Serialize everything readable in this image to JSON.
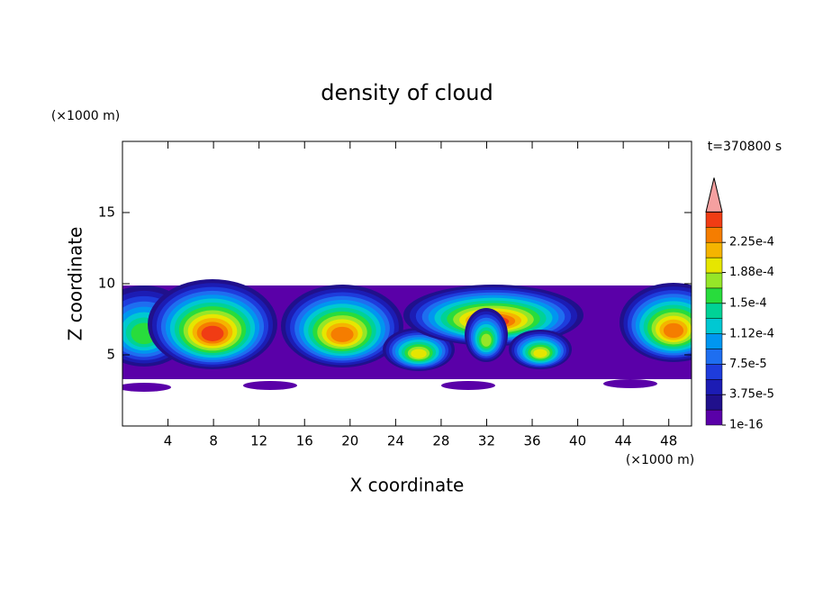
{
  "chart_data": {
    "type": "contour",
    "title": "density of cloud",
    "x_label": "X coordinate",
    "y_label": "Z coordinate",
    "x_unit": "(×1000 m)",
    "y_unit": "(×1000 m)",
    "time_label": "t=370800 s",
    "xlim": [
      0,
      50
    ],
    "xticks": [
      4,
      8,
      12,
      16,
      20,
      24,
      28,
      32,
      36,
      40,
      44,
      48
    ],
    "ylim": [
      0,
      20
    ],
    "yticks": [
      5,
      10,
      15
    ],
    "colorbar": {
      "clim": [
        1e-16,
        0.0002625
      ],
      "colors": [
        "#5a00a8",
        "#20108c",
        "#1c1cb4",
        "#1e3cdc",
        "#1e6ef0",
        "#0096f0",
        "#00c8d2",
        "#00d296",
        "#28dc3c",
        "#96e628",
        "#e6e600",
        "#f5b400",
        "#f57d00",
        "#f03c14"
      ],
      "extend_color": "#f5a0a0",
      "ticks": [
        {
          "value": 1e-16,
          "label": "1e-16"
        },
        {
          "value": 3.75e-05,
          "label": "3.75e-5"
        },
        {
          "value": 7.5e-05,
          "label": "7.5e-5"
        },
        {
          "value": 0.000112,
          "label": "1.12e-4"
        },
        {
          "value": 0.00015,
          "label": "1.5e-4"
        },
        {
          "value": 0.000188,
          "label": "1.88e-4"
        },
        {
          "value": 0.000225,
          "label": "2.25e-4"
        }
      ]
    }
  }
}
